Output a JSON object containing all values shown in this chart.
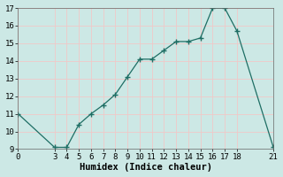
{
  "x": [
    0,
    3,
    4,
    5,
    6,
    7,
    8,
    9,
    10,
    11,
    12,
    13,
    14,
    15,
    16,
    17,
    18,
    21
  ],
  "y": [
    11,
    9.1,
    9.1,
    10.4,
    11.0,
    11.5,
    12.1,
    13.1,
    14.1,
    14.1,
    14.6,
    15.1,
    15.1,
    15.3,
    17.0,
    17.0,
    15.7,
    9.1
  ],
  "line_color": "#1e6e64",
  "marker_color": "#1e6e64",
  "bg_color": "#cce8e5",
  "grid_color": "#f0c8c8",
  "xlabel": "Humidex (Indice chaleur)",
  "xlim": [
    0,
    21
  ],
  "ylim": [
    9,
    17
  ],
  "xticks": [
    0,
    3,
    4,
    5,
    6,
    7,
    8,
    9,
    10,
    11,
    12,
    13,
    14,
    15,
    16,
    17,
    18,
    21
  ],
  "yticks": [
    9,
    10,
    11,
    12,
    13,
    14,
    15,
    16,
    17
  ],
  "xlabel_fontsize": 7.5,
  "tick_fontsize": 6.5
}
